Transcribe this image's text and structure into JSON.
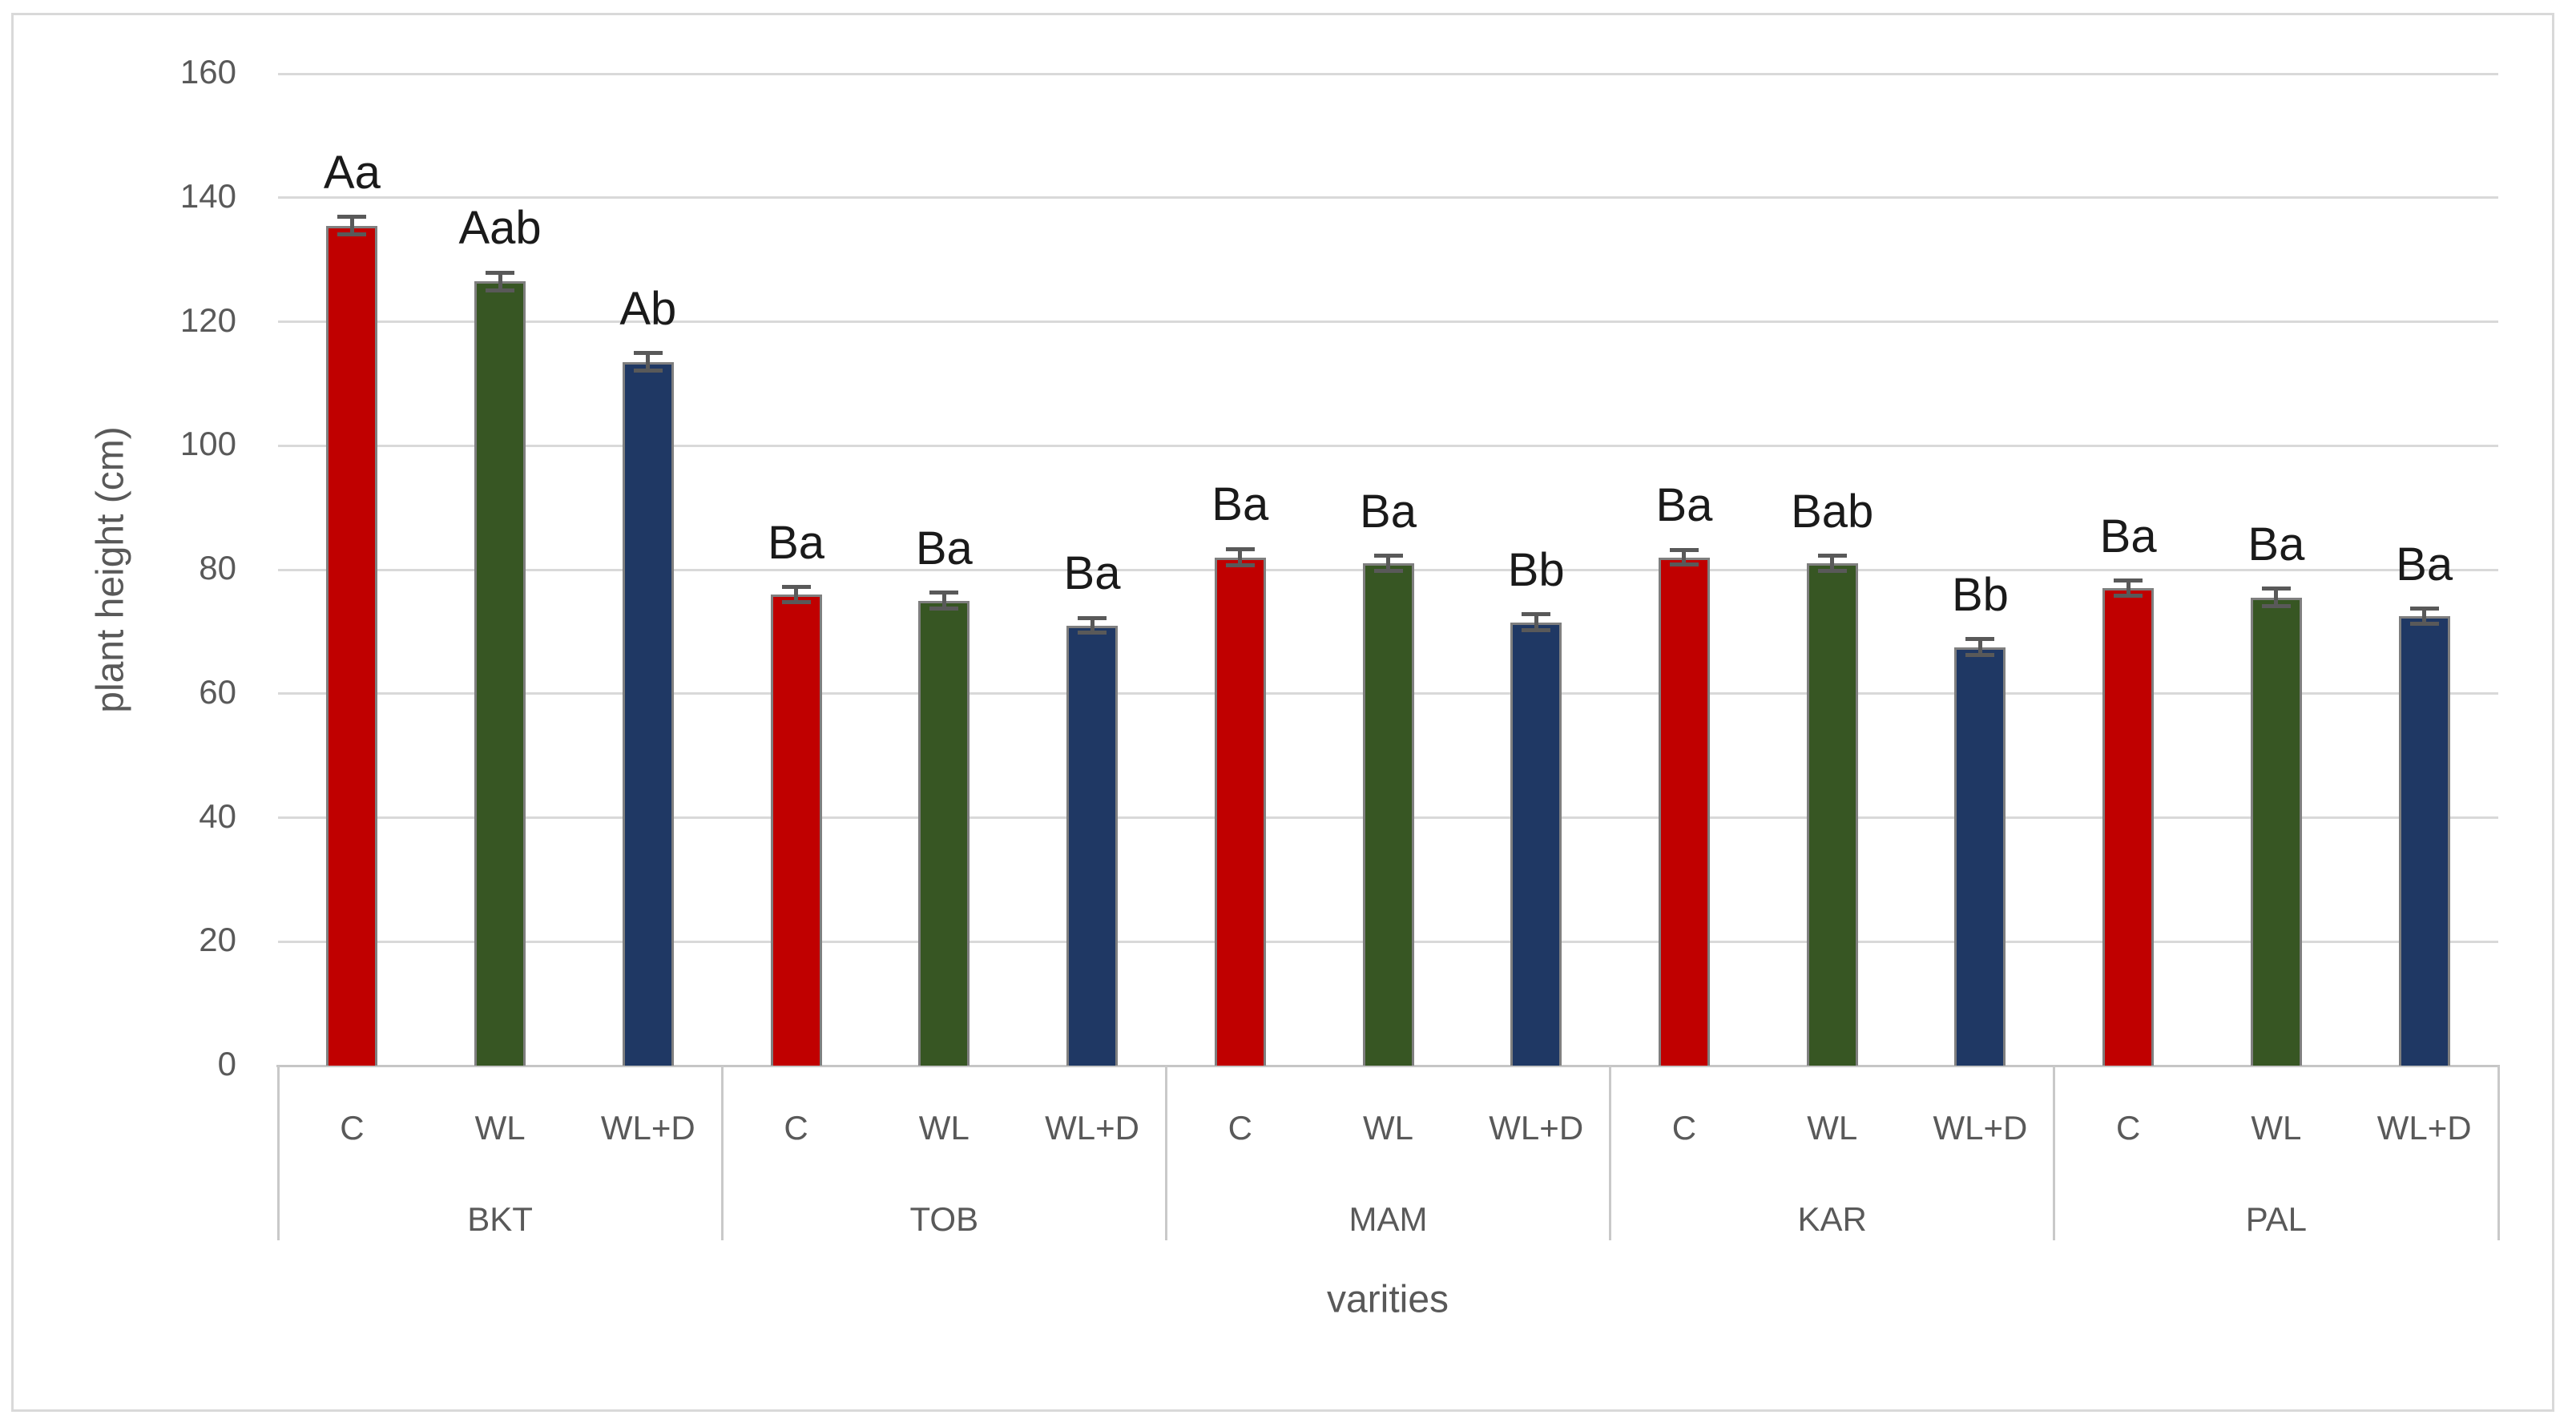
{
  "chart_data": {
    "type": "bar",
    "title": "",
    "xlabel": "varities",
    "ylabel": "plant height (cm)",
    "ylim": [
      0,
      160
    ],
    "yticks": [
      0,
      20,
      40,
      60,
      80,
      100,
      120,
      140,
      160
    ],
    "grid": true,
    "legend": "none",
    "groups": [
      "BKT",
      "TOB",
      "MAM",
      "KAR",
      "PAL"
    ],
    "treatments": [
      "C",
      "WL",
      "WL+D"
    ],
    "series": [
      {
        "name": "C",
        "color": "#C00000",
        "values": [
          135.5,
          76,
          82,
          82,
          77
        ],
        "errors": [
          1.4,
          1.2,
          1.3,
          1.2,
          1.2
        ],
        "annotations": [
          "Aa",
          "Ba",
          "Ba",
          "Ba",
          "Ba"
        ]
      },
      {
        "name": "WL",
        "color": "#375623",
        "values": [
          126.5,
          75,
          81,
          81,
          75.5
        ],
        "errors": [
          1.4,
          1.3,
          1.2,
          1.2,
          1.4
        ],
        "annotations": [
          "Aab",
          "Ba",
          "Ba",
          "Bab",
          "Ba"
        ]
      },
      {
        "name": "WL+D",
        "color": "#1F3864",
        "values": [
          113.5,
          71,
          71.5,
          67.5,
          72.5
        ],
        "errors": [
          1.4,
          1.2,
          1.3,
          1.3,
          1.2
        ],
        "annotations": [
          "Ab",
          "Ba",
          "Bb",
          "Bb",
          "Ba"
        ]
      }
    ],
    "colors": {
      "bar_border": "#7F7F7F",
      "error_bar": "#595959",
      "gridline": "#D9D9D9",
      "axis_line": "#C6C6C6",
      "axis_text": "#595959",
      "annotation_text": "#1A1A1A",
      "frame_border": "#D9D9D9",
      "background": "#FFFFFF"
    }
  }
}
